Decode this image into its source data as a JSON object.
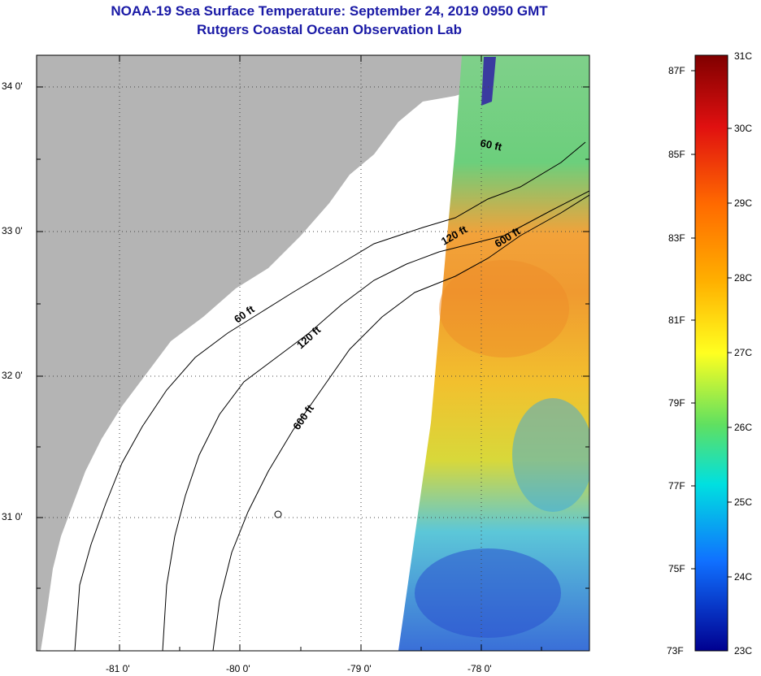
{
  "title": "NOAA-19 Sea Surface Temperature:  September 24, 2019 0950 GMT",
  "subtitle": "Rutgers Coastal Ocean Observation Lab",
  "lat_labels": [
    "34 0'",
    "33 0'",
    "32 0'",
    "31 0'"
  ],
  "lon_labels": [
    "-81 0'",
    "-80 0'",
    "-79 0'",
    "-78 0'"
  ],
  "contour_labels": [
    "60 ft",
    "120 ft",
    "600 ft",
    "60 ft",
    "120 ft",
    "600 ft"
  ],
  "colorbar": {
    "fahrenheit": [
      "87F",
      "85F",
      "83F",
      "81F",
      "79F",
      "77F",
      "75F",
      "73F"
    ],
    "celsius": [
      "31C",
      "30C",
      "29C",
      "28C",
      "27C",
      "26C",
      "25C",
      "24C",
      "23C"
    ]
  },
  "colors": {
    "title": "#1a1aa6",
    "land": "#b4b4b4",
    "ocean_nodata": "#ffffff"
  }
}
